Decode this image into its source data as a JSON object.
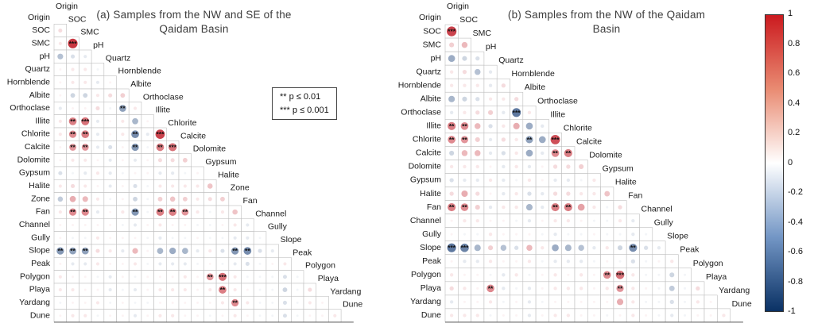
{
  "figure": {
    "background": "#ffffff",
    "positive_color": "#be1420",
    "negative_color": "#08306b"
  },
  "legend_box": {
    "line1": "** p ≤ 0.01",
    "line2": "*** p ≤ 0.001"
  },
  "colorbar": {
    "min": -1,
    "max": 1,
    "ticks": [
      "1",
      "0.8",
      "0.6",
      "0.4",
      "0.2",
      "0",
      "-0.2",
      "-0.4",
      "-0.6",
      "-0.8",
      "-1"
    ]
  },
  "chart_data": [
    {
      "type": "heatmap",
      "subtype": "correlation-matrix-lower-triangle",
      "title": "(a) Samples from the NW and SE of the Qaidam Basin",
      "legend_position": "right",
      "value_range": [
        -1,
        1
      ],
      "significance_legend": [
        "** p ≤ 0.01",
        "*** p ≤ 0.001"
      ],
      "labels": [
        "Origin",
        "SOC",
        "SMC",
        "pH",
        "Quartz",
        "Hornblende",
        "Albite",
        "Orthoclase",
        "Illite",
        "Chlorite",
        "Calcite",
        "Dolomite",
        "Gypsum",
        "Halite",
        "Zone",
        "Fan",
        "Channel",
        "Gully",
        "Slope",
        "Peak",
        "Polygon",
        "Playa",
        "Yardang",
        "Dune"
      ],
      "matrix_lower": [
        [],
        [
          0.15
        ],
        [
          0.1,
          0.85
        ],
        [
          -0.3,
          -0.15,
          -0.1
        ],
        [
          0.05,
          0.1,
          0.1,
          -0.05
        ],
        [
          0.05,
          0.1,
          0.1,
          -0.1,
          0.05
        ],
        [
          0.05,
          -0.2,
          -0.2,
          0.1,
          0.15,
          0.2
        ],
        [
          -0.1,
          0.05,
          0.05,
          0.15,
          -0.05,
          -0.45,
          0.1
        ],
        [
          0.1,
          0.55,
          0.6,
          -0.1,
          0.05,
          0.1,
          -0.35,
          0.05
        ],
        [
          0.1,
          0.5,
          0.55,
          -0.1,
          0.05,
          0.1,
          -0.55,
          -0.1,
          0.8
        ],
        [
          0.05,
          0.45,
          0.45,
          -0.1,
          -0.15,
          0.05,
          -0.5,
          -0.05,
          0.55,
          0.6
        ],
        [
          0.05,
          0.1,
          0.1,
          0.05,
          -0.1,
          0.05,
          -0.1,
          0.05,
          0.15,
          0.15,
          0.2
        ],
        [
          -0.15,
          -0.05,
          -0.1,
          0.1,
          -0.1,
          -0.05,
          0.05,
          0.05,
          -0.1,
          -0.1,
          -0.05,
          0.05
        ],
        [
          0.1,
          0.15,
          0.1,
          0.05,
          -0.1,
          0.05,
          -0.15,
          -0.05,
          0.1,
          0.1,
          0.1,
          0.1,
          0.25
        ],
        [
          -0.25,
          0.35,
          0.3,
          0.1,
          -0.05,
          0.05,
          -0.2,
          -0.05,
          0.2,
          0.25,
          0.2,
          0.1,
          0.15,
          0.2
        ],
        [
          0.1,
          0.5,
          0.5,
          -0.1,
          0.05,
          0.1,
          -0.5,
          -0.05,
          0.55,
          0.55,
          0.45,
          0.1,
          -0.05,
          0.1,
          0.25
        ],
        [
          0.05,
          0.05,
          0.05,
          0.05,
          0.05,
          -0.05,
          -0.1,
          0.05,
          0.1,
          0.05,
          0.05,
          -0.05,
          -0.05,
          0.05,
          0.1,
          -0.1
        ],
        [
          0.05,
          -0.05,
          -0.05,
          0.1,
          0.05,
          0.05,
          0.05,
          -0.05,
          -0.1,
          -0.05,
          -0.05,
          0.05,
          -0.05,
          -0.05,
          -0.1,
          -0.1,
          -0.05
        ],
        [
          -0.5,
          -0.45,
          -0.45,
          0.15,
          0.1,
          -0.1,
          0.3,
          0.05,
          -0.35,
          -0.4,
          -0.35,
          -0.1,
          0.1,
          -0.15,
          -0.5,
          -0.55,
          -0.15,
          -0.1
        ],
        [
          0.05,
          -0.1,
          -0.1,
          0.1,
          0.05,
          0.05,
          0.1,
          -0.05,
          -0.1,
          -0.1,
          -0.1,
          -0.05,
          0.05,
          -0.05,
          -0.1,
          -0.15,
          -0.05,
          0.05,
          0.1
        ],
        [
          0.1,
          0.05,
          0.05,
          -0.05,
          -0.1,
          0.05,
          -0.05,
          0.05,
          0.05,
          0.05,
          0.1,
          0.05,
          0.45,
          0.6,
          0.1,
          -0.05,
          -0.05,
          -0.05,
          -0.15,
          -0.05
        ],
        [
          0.1,
          0.1,
          0.05,
          0.05,
          -0.1,
          -0.05,
          -0.1,
          0.05,
          0.1,
          0.1,
          0.1,
          0.05,
          0.1,
          0.55,
          0.1,
          0.05,
          -0.05,
          -0.05,
          -0.2,
          -0.05,
          0.15
        ],
        [
          -0.05,
          0.05,
          0.05,
          0.1,
          -0.05,
          0.05,
          -0.05,
          -0.05,
          0.05,
          0.05,
          0.05,
          0.05,
          0.05,
          0.1,
          0.5,
          0.1,
          -0.05,
          -0.05,
          -0.15,
          -0.05,
          0.1,
          0.05
        ],
        [
          0.05,
          0.1,
          0.1,
          -0.05,
          0.05,
          0.05,
          -0.1,
          0.05,
          0.1,
          0.1,
          0.05,
          0.05,
          -0.05,
          0.05,
          0.1,
          0.05,
          -0.05,
          -0.05,
          -0.15,
          -0.05,
          0.05,
          0.05,
          0.1
        ]
      ]
    },
    {
      "type": "heatmap",
      "subtype": "correlation-matrix-lower-triangle",
      "title": "(b) Samples from the NW of the Qaidam Basin",
      "legend_position": "right",
      "value_range": [
        -1,
        1
      ],
      "significance_legend": [
        "** p ≤ 0.01",
        "*** p ≤ 0.001"
      ],
      "labels": [
        "Origin",
        "SOC",
        "SMC",
        "pH",
        "Quartz",
        "Hornblende",
        "Albite",
        "Orthoclase",
        "Illite",
        "Chlorite",
        "Calcite",
        "Dolomite",
        "Gypsum",
        "Halite",
        "Fan",
        "Channel",
        "Gully",
        "Slope",
        "Peak",
        "Polygon",
        "Playa",
        "Yardang",
        "Dune"
      ],
      "matrix_lower": [
        [],
        [
          0.8
        ],
        [
          0.2,
          0.3
        ],
        [
          -0.4,
          -0.2,
          -0.15
        ],
        [
          0.1,
          0.15,
          -0.3,
          -0.1
        ],
        [
          0.1,
          0.1,
          0.1,
          -0.1,
          0.15
        ],
        [
          -0.35,
          -0.2,
          -0.15,
          0.1,
          0.1,
          0.15
        ],
        [
          -0.1,
          0.1,
          0.15,
          0.2,
          -0.1,
          -0.65,
          0.1
        ],
        [
          0.55,
          0.5,
          0.3,
          -0.15,
          0.1,
          0.35,
          -0.4,
          -0.1
        ],
        [
          0.5,
          0.45,
          0.2,
          -0.1,
          0.15,
          0.1,
          -0.45,
          -0.4,
          0.75
        ],
        [
          -0.2,
          0.3,
          0.3,
          -0.1,
          -0.15,
          0.1,
          -0.4,
          -0.1,
          0.5,
          0.55
        ],
        [
          0.1,
          0.1,
          0.1,
          0.05,
          -0.1,
          0.1,
          -0.1,
          0.05,
          0.15,
          0.15,
          0.2
        ],
        [
          -0.15,
          -0.1,
          -0.1,
          0.1,
          -0.1,
          -0.05,
          0.1,
          0.05,
          -0.1,
          -0.1,
          -0.05,
          0.1
        ],
        [
          0.15,
          0.35,
          0.15,
          0.05,
          -0.1,
          0.1,
          -0.15,
          -0.1,
          0.15,
          0.15,
          0.1,
          0.1,
          0.25
        ],
        [
          0.55,
          0.5,
          0.2,
          -0.1,
          0.1,
          0.1,
          -0.35,
          -0.1,
          0.55,
          0.55,
          0.4,
          0.1,
          -0.05,
          0.15
        ],
        [
          0.05,
          0.1,
          0.1,
          0.05,
          0.05,
          -0.05,
          -0.1,
          0.05,
          0.1,
          0.1,
          0.05,
          -0.05,
          -0.05,
          0.1,
          -0.1
        ],
        [
          0.05,
          -0.05,
          -0.05,
          0.1,
          0.05,
          0.05,
          0.05,
          -0.05,
          -0.1,
          -0.05,
          -0.05,
          0.05,
          -0.05,
          -0.05,
          -0.1,
          -0.05
        ],
        [
          -0.65,
          -0.6,
          -0.35,
          0.2,
          -0.3,
          -0.15,
          0.3,
          0.1,
          -0.4,
          -0.35,
          -0.3,
          -0.1,
          0.1,
          -0.2,
          -0.55,
          -0.15,
          -0.1
        ],
        [
          0.05,
          -0.1,
          -0.1,
          0.1,
          0.05,
          0.05,
          0.1,
          -0.05,
          -0.1,
          -0.1,
          -0.1,
          -0.05,
          0.05,
          -0.05,
          -0.15,
          -0.05,
          0.05,
          0.1
        ],
        [
          0.1,
          0.05,
          0.05,
          -0.05,
          -0.1,
          0.1,
          -0.05,
          0.05,
          0.1,
          0.05,
          0.1,
          0.05,
          0.5,
          0.6,
          0.1,
          -0.05,
          -0.05,
          -0.2,
          -0.05
        ],
        [
          0.15,
          0.1,
          0.05,
          0.5,
          -0.1,
          -0.05,
          -0.1,
          0.05,
          0.1,
          0.1,
          0.1,
          0.05,
          0.1,
          0.45,
          0.1,
          0.05,
          -0.05,
          -0.25,
          -0.05,
          0.15
        ],
        [
          -0.1,
          0.05,
          0.05,
          0.1,
          -0.05,
          0.05,
          -0.1,
          -0.05,
          0.05,
          0.05,
          0.05,
          0.05,
          0.05,
          0.35,
          0.1,
          -0.05,
          -0.05,
          -0.15,
          -0.05,
          0.1,
          0.05
        ],
        [
          0.1,
          0.1,
          0.1,
          -0.05,
          0.05,
          0.05,
          -0.1,
          0.05,
          0.1,
          0.1,
          0.05,
          0.05,
          -0.05,
          0.05,
          0.1,
          0.05,
          -0.05,
          -0.1,
          -0.05,
          0.05,
          0.05,
          0.1
        ]
      ]
    }
  ]
}
